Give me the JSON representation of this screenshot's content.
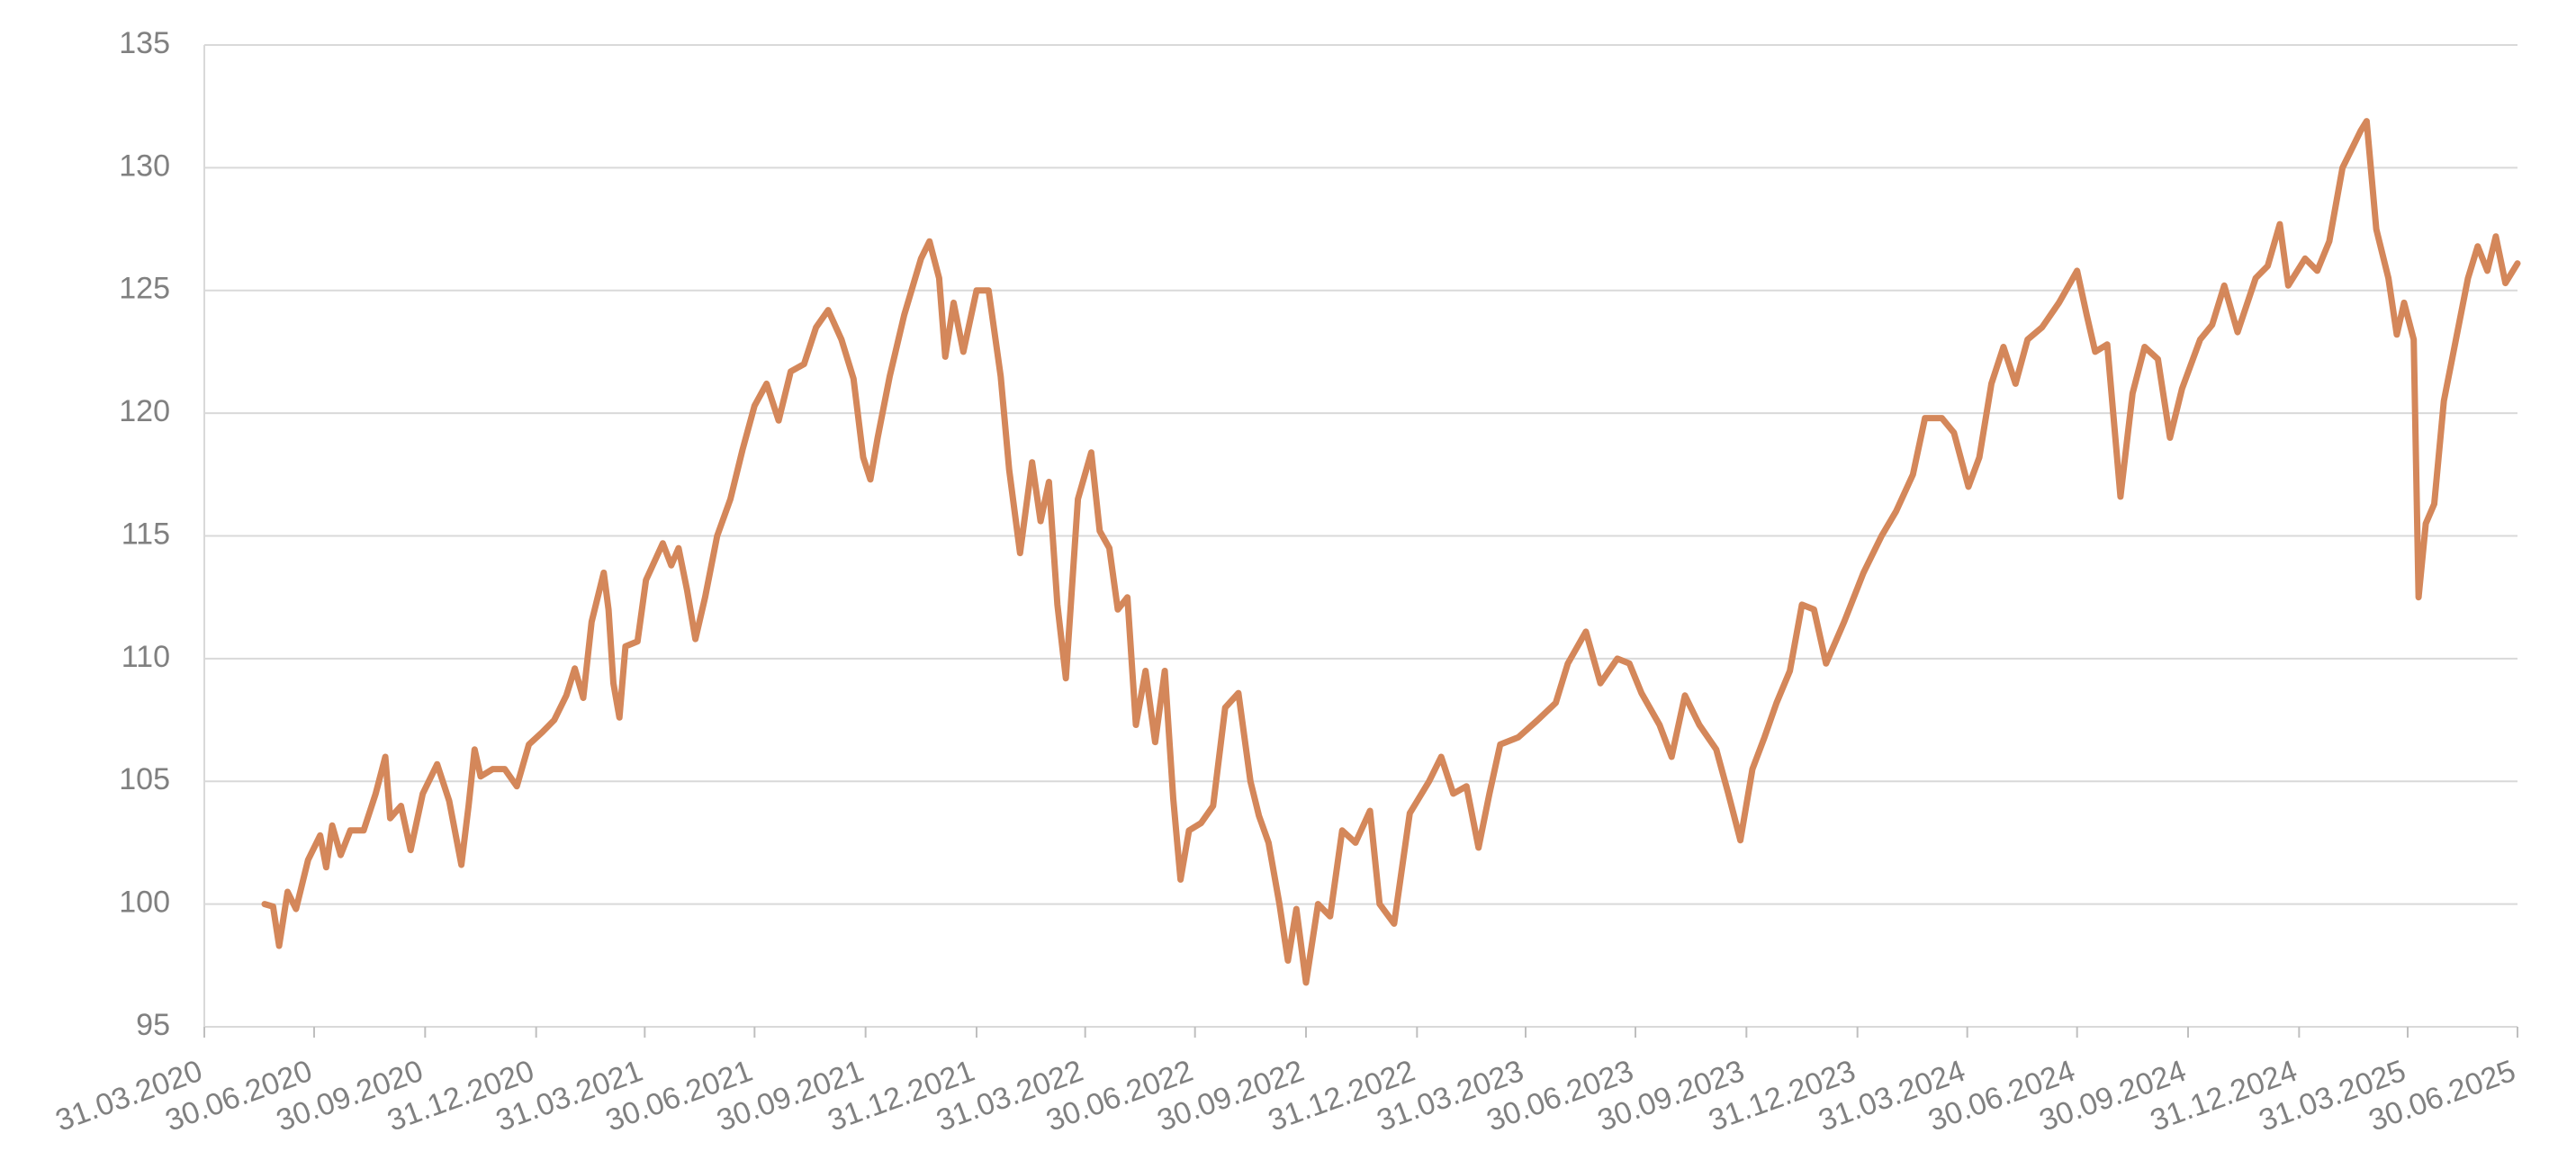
{
  "chart_data": {
    "type": "line",
    "color": "#d4875a",
    "grid": true,
    "ylim": [
      95,
      135
    ],
    "yticks": [
      95,
      100,
      105,
      110,
      115,
      120,
      125,
      130,
      135
    ],
    "xlim": [
      "2020-03-31",
      "2025-06-30"
    ],
    "xticks": [
      {
        "value": "2020-03-31",
        "label": "31.03.2020"
      },
      {
        "value": "2020-06-30",
        "label": "30.06.2020"
      },
      {
        "value": "2020-09-30",
        "label": "30.09.2020"
      },
      {
        "value": "2020-12-31",
        "label": "31.12.2020"
      },
      {
        "value": "2021-03-31",
        "label": "31.03.2021"
      },
      {
        "value": "2021-06-30",
        "label": "30.06.2021"
      },
      {
        "value": "2021-09-30",
        "label": "30.09.2021"
      },
      {
        "value": "2021-12-31",
        "label": "31.12.2021"
      },
      {
        "value": "2022-03-31",
        "label": "31.03.2022"
      },
      {
        "value": "2022-06-30",
        "label": "30.06.2022"
      },
      {
        "value": "2022-09-30",
        "label": "30.09.2022"
      },
      {
        "value": "2022-12-31",
        "label": "31.12.2022"
      },
      {
        "value": "2023-03-31",
        "label": "31.03.2023"
      },
      {
        "value": "2023-06-30",
        "label": "30.06.2023"
      },
      {
        "value": "2023-09-30",
        "label": "30.09.2023"
      },
      {
        "value": "2023-12-31",
        "label": "31.12.2023"
      },
      {
        "value": "2024-03-31",
        "label": "31.03.2024"
      },
      {
        "value": "2024-06-30",
        "label": "30.06.2024"
      },
      {
        "value": "2024-09-30",
        "label": "30.09.2024"
      },
      {
        "value": "2024-12-31",
        "label": "31.12.2024"
      },
      {
        "value": "2025-03-31",
        "label": "31.03.2025"
      },
      {
        "value": "2025-06-30",
        "label": "30.06.2025"
      }
    ],
    "x": [
      "2020-05-20",
      "2020-05-27",
      "2020-06-01",
      "2020-06-08",
      "2020-06-15",
      "2020-06-25",
      "2020-07-05",
      "2020-07-10",
      "2020-07-15",
      "2020-07-22",
      "2020-07-30",
      "2020-08-10",
      "2020-08-20",
      "2020-08-28",
      "2020-09-01",
      "2020-09-10",
      "2020-09-18",
      "2020-09-28",
      "2020-10-10",
      "2020-10-20",
      "2020-10-30",
      "2020-11-05",
      "2020-11-10",
      "2020-11-15",
      "2020-11-25",
      "2020-12-05",
      "2020-12-15",
      "2020-12-25",
      "2021-01-05",
      "2021-01-15",
      "2021-01-25",
      "2021-02-01",
      "2021-02-08",
      "2021-02-15",
      "2021-02-25",
      "2021-03-01",
      "2021-03-05",
      "2021-03-10",
      "2021-03-15",
      "2021-03-25",
      "2021-04-01",
      "2021-04-15",
      "2021-04-22",
      "2021-04-28",
      "2021-05-05",
      "2021-05-12",
      "2021-05-20",
      "2021-05-30",
      "2021-06-10",
      "2021-06-20",
      "2021-06-30",
      "2021-07-10",
      "2021-07-20",
      "2021-07-30",
      "2021-08-10",
      "2021-08-20",
      "2021-08-30",
      "2021-09-10",
      "2021-09-20",
      "2021-09-28",
      "2021-10-04",
      "2021-10-10",
      "2021-10-20",
      "2021-11-01",
      "2021-11-15",
      "2021-11-22",
      "2021-11-30",
      "2021-12-05",
      "2021-12-12",
      "2021-12-20",
      "2021-12-31",
      "2022-01-10",
      "2022-01-20",
      "2022-01-27",
      "2022-02-05",
      "2022-02-15",
      "2022-02-22",
      "2022-03-01",
      "2022-03-08",
      "2022-03-15",
      "2022-03-25",
      "2022-04-05",
      "2022-04-12",
      "2022-04-20",
      "2022-04-27",
      "2022-05-05",
      "2022-05-12",
      "2022-05-20",
      "2022-05-28",
      "2022-06-05",
      "2022-06-12",
      "2022-06-18",
      "2022-06-25",
      "2022-07-05",
      "2022-07-15",
      "2022-07-25",
      "2022-08-05",
      "2022-08-15",
      "2022-08-22",
      "2022-08-30",
      "2022-09-08",
      "2022-09-15",
      "2022-09-22",
      "2022-09-30",
      "2022-10-10",
      "2022-10-20",
      "2022-10-30",
      "2022-11-10",
      "2022-11-22",
      "2022-11-30",
      "2022-12-12",
      "2022-12-25",
      "2023-01-10",
      "2023-01-20",
      "2023-01-30",
      "2023-02-10",
      "2023-02-20",
      "2023-03-01",
      "2023-03-10",
      "2023-03-25",
      "2023-04-10",
      "2023-04-25",
      "2023-05-05",
      "2023-05-20",
      "2023-06-01",
      "2023-06-15",
      "2023-06-25",
      "2023-07-05",
      "2023-07-20",
      "2023-07-30",
      "2023-08-10",
      "2023-08-22",
      "2023-09-05",
      "2023-09-15",
      "2023-09-25",
      "2023-10-05",
      "2023-10-15",
      "2023-10-25",
      "2023-11-05",
      "2023-11-15",
      "2023-11-25",
      "2023-12-05",
      "2023-12-20",
      "2024-01-05",
      "2024-01-20",
      "2024-02-01",
      "2024-02-15",
      "2024-02-25",
      "2024-03-10",
      "2024-03-20",
      "2024-04-01",
      "2024-04-10",
      "2024-04-20",
      "2024-04-30",
      "2024-05-10",
      "2024-05-20",
      "2024-06-01",
      "2024-06-15",
      "2024-06-30",
      "2024-07-08",
      "2024-07-15",
      "2024-07-25",
      "2024-08-05",
      "2024-08-15",
      "2024-08-25",
      "2024-09-05",
      "2024-09-15",
      "2024-09-25",
      "2024-10-10",
      "2024-10-20",
      "2024-10-30",
      "2024-11-10",
      "2024-11-25",
      "2024-12-05",
      "2024-12-15",
      "2024-12-22",
      "2025-01-05",
      "2025-01-15",
      "2025-01-25",
      "2025-02-05",
      "2025-02-12",
      "2025-02-20",
      "2025-02-25",
      "2025-03-05",
      "2025-03-15",
      "2025-03-22",
      "2025-03-28",
      "2025-04-05",
      "2025-04-09",
      "2025-04-15",
      "2025-04-22",
      "2025-04-30",
      "2025-05-10",
      "2025-05-20",
      "2025-05-28",
      "2025-06-05",
      "2025-06-12",
      "2025-06-20",
      "2025-06-30"
    ],
    "values": [
      100,
      99.9,
      98.3,
      100.5,
      99.8,
      101.8,
      102.8,
      101.5,
      103.2,
      102,
      103,
      103,
      104.5,
      106,
      103.5,
      104,
      102.2,
      104.5,
      105.7,
      104.2,
      101.6,
      104,
      106.3,
      105.2,
      105.5,
      105.5,
      104.8,
      106.5,
      107,
      107.5,
      108.5,
      109.6,
      108.4,
      111.5,
      113.5,
      112,
      109,
      107.6,
      110.5,
      110.7,
      113.2,
      114.7,
      113.8,
      114.5,
      112.8,
      110.8,
      112.5,
      115,
      116.5,
      118.5,
      120.3,
      121.2,
      119.7,
      121.7,
      122,
      123.5,
      124.2,
      123,
      121.4,
      118.2,
      117.3,
      119,
      121.5,
      124,
      126.3,
      127,
      125.5,
      122.3,
      124.5,
      122.5,
      125,
      125,
      121.5,
      117.7,
      114.3,
      118,
      115.6,
      117.2,
      112.2,
      109.2,
      116.5,
      118.4,
      115.2,
      114.5,
      112,
      112.5,
      107.3,
      109.5,
      106.6,
      109.5,
      104.3,
      101,
      103,
      103.3,
      104,
      108,
      108.6,
      105,
      103.6,
      102.5,
      100,
      97.7,
      99.8,
      96.8,
      100,
      99.5,
      103,
      102.5,
      103.8,
      100,
      99.2,
      103.7,
      105,
      106,
      104.5,
      104.8,
      102.3,
      104.5,
      106.5,
      106.8,
      107.5,
      108.2,
      109.8,
      111.1,
      109,
      110,
      109.8,
      108.6,
      107.3,
      106,
      108.5,
      107.3,
      106.3,
      104.5,
      102.6,
      105.5,
      106.8,
      108.2,
      109.5,
      112.2,
      112,
      109.8,
      111.5,
      113.5,
      115,
      116,
      117.5,
      119.8,
      119.8,
      119.2,
      117,
      118.2,
      121.2,
      122.7,
      121.2,
      123,
      123.5,
      124.5,
      125.8,
      124,
      122.5,
      122.8,
      116.6,
      120.8,
      122.7,
      122.2,
      119,
      121,
      123,
      123.6,
      125.2,
      123.3,
      125.5,
      126,
      127.7,
      125.2,
      126.3,
      125.8,
      127,
      130,
      130.7,
      131.5,
      131.9,
      127.5,
      125.5,
      123.2,
      124.5,
      123,
      112.5,
      115.5,
      116.3,
      120.5,
      123,
      125.5,
      126.8,
      125.8,
      127.2,
      125.3,
      126.1
    ]
  }
}
